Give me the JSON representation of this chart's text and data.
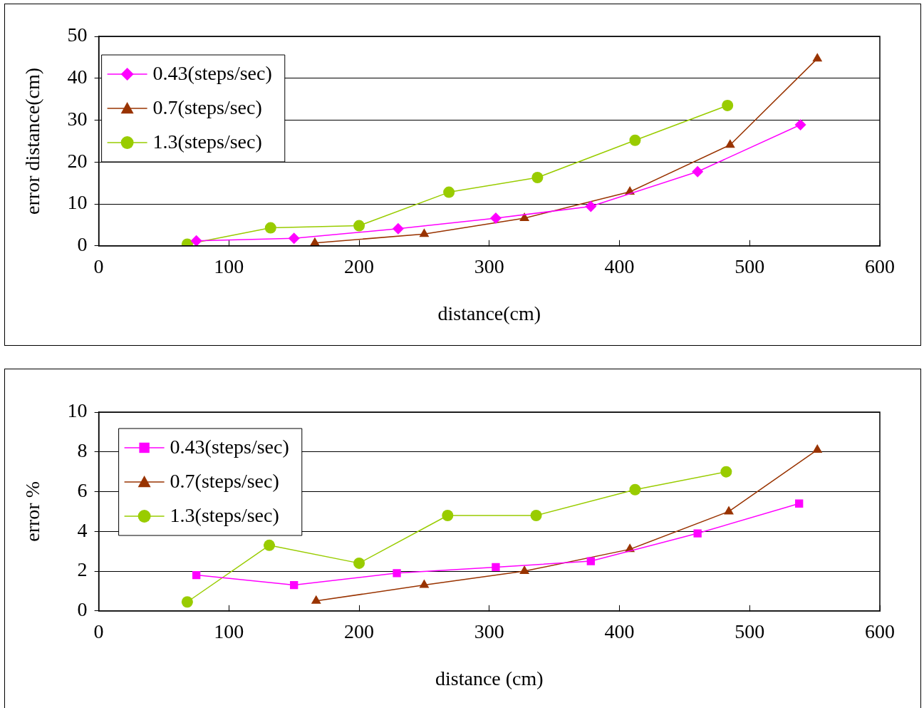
{
  "chart_data": [
    {
      "type": "line",
      "xlabel": "distance(cm)",
      "ylabel": "error distance(cm)",
      "xlim": [
        0,
        600
      ],
      "xticks": [
        0,
        100,
        200,
        300,
        400,
        500,
        600
      ],
      "ylim": [
        0,
        50
      ],
      "yticks": [
        0,
        10,
        20,
        30,
        40,
        50
      ],
      "grid": "y",
      "legend": "top left",
      "series": [
        {
          "name": "0.43(steps/sec)",
          "color": "#ff00ff",
          "marker": "diamond",
          "x": [
            75,
            150,
            230,
            305,
            378,
            460,
            539
          ],
          "values": [
            1.2,
            1.8,
            4.1,
            6.6,
            9.4,
            17.7,
            28.9
          ]
        },
        {
          "name": "0.7(steps/sec)",
          "color": "#993300",
          "marker": "triangle",
          "x": [
            166,
            250,
            327,
            408,
            485,
            552
          ],
          "values": [
            0.7,
            2.8,
            6.6,
            12.9,
            24.1,
            44.7
          ]
        },
        {
          "name": "1.3(steps/sec)",
          "color": "#99cc00",
          "marker": "circle",
          "x": [
            68,
            132,
            200,
            269,
            337,
            412,
            483
          ],
          "values": [
            0.4,
            4.3,
            4.8,
            12.8,
            16.3,
            25.2,
            33.5
          ]
        }
      ]
    },
    {
      "type": "line",
      "xlabel": "distance (cm)",
      "ylabel": "error %",
      "xlim": [
        0,
        600
      ],
      "xticks": [
        0,
        100,
        200,
        300,
        400,
        500,
        600
      ],
      "ylim": [
        0,
        10
      ],
      "yticks": [
        0,
        2,
        4,
        6,
        8,
        10
      ],
      "grid": "y",
      "legend": "top left",
      "series": [
        {
          "name": "0.43(steps/sec)",
          "color": "#ff00ff",
          "marker": "square",
          "x": [
            75,
            150,
            229,
            305,
            378,
            460,
            538
          ],
          "values": [
            1.8,
            1.3,
            1.9,
            2.2,
            2.5,
            3.9,
            5.4
          ]
        },
        {
          "name": "0.7(steps/sec)",
          "color": "#993300",
          "marker": "triangle",
          "x": [
            167,
            250,
            327,
            408,
            484,
            552
          ],
          "values": [
            0.5,
            1.3,
            2.0,
            3.1,
            5.0,
            8.1
          ]
        },
        {
          "name": "1.3(steps/sec)",
          "color": "#99cc00",
          "marker": "circle",
          "x": [
            68,
            131,
            200,
            268,
            336,
            412,
            482
          ],
          "values": [
            0.45,
            3.3,
            2.4,
            4.8,
            4.8,
            6.1,
            7.0
          ]
        }
      ]
    }
  ]
}
